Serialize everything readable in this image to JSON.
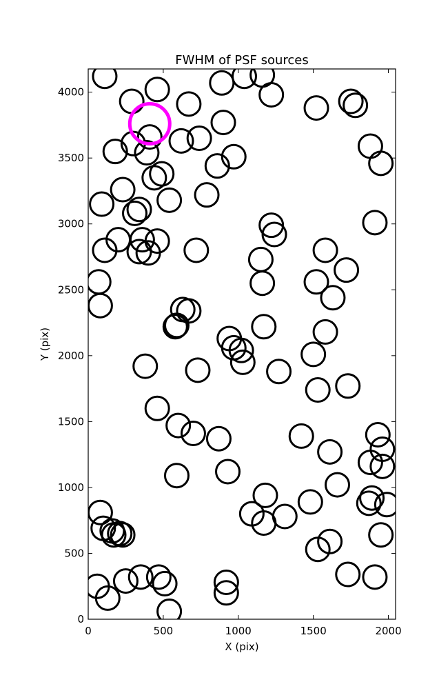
{
  "chart_data": {
    "type": "scatter",
    "title": "FWHM of PSF sources",
    "xlabel": "X (pix)",
    "ylabel": "Y (pix)",
    "xlim": [
      0,
      2048
    ],
    "ylim": [
      0,
      4176
    ],
    "xticks": [
      0,
      500,
      1000,
      1500,
      2000
    ],
    "yticks": [
      0,
      500,
      1000,
      1500,
      2000,
      2500,
      3000,
      3500,
      4000
    ],
    "marker": "open-circle",
    "marker_color": "#000000",
    "highlight_color": "#ff00ff",
    "grid": false,
    "highlight": {
      "x": 410,
      "y": 3760
    },
    "points": [
      [
        110,
        4120
      ],
      [
        290,
        3930
      ],
      [
        460,
        4020
      ],
      [
        670,
        3910
      ],
      [
        890,
        4070
      ],
      [
        1040,
        4120
      ],
      [
        1160,
        4130
      ],
      [
        1220,
        3980
      ],
      [
        1520,
        3880
      ],
      [
        1750,
        3930
      ],
      [
        1780,
        3900
      ],
      [
        1880,
        3590
      ],
      [
        1950,
        3460
      ],
      [
        410,
        3660
      ],
      [
        300,
        3610
      ],
      [
        180,
        3550
      ],
      [
        390,
        3540
      ],
      [
        620,
        3630
      ],
      [
        740,
        3650
      ],
      [
        900,
        3770
      ],
      [
        970,
        3510
      ],
      [
        860,
        3440
      ],
      [
        440,
        3350
      ],
      [
        490,
        3380
      ],
      [
        230,
        3260
      ],
      [
        540,
        3180
      ],
      [
        790,
        3220
      ],
      [
        90,
        3150
      ],
      [
        340,
        3110
      ],
      [
        310,
        3080
      ],
      [
        1220,
        2990
      ],
      [
        1240,
        2920
      ],
      [
        1910,
        3010
      ],
      [
        200,
        2880
      ],
      [
        360,
        2880
      ],
      [
        460,
        2870
      ],
      [
        110,
        2800
      ],
      [
        340,
        2790
      ],
      [
        400,
        2780
      ],
      [
        720,
        2800
      ],
      [
        1150,
        2730
      ],
      [
        1580,
        2800
      ],
      [
        1720,
        2650
      ],
      [
        70,
        2560
      ],
      [
        1160,
        2550
      ],
      [
        1520,
        2560
      ],
      [
        1630,
        2440
      ],
      [
        80,
        2380
      ],
      [
        630,
        2350
      ],
      [
        670,
        2340
      ],
      [
        580,
        2220
      ],
      [
        590,
        2230
      ],
      [
        1170,
        2220
      ],
      [
        1580,
        2180
      ],
      [
        940,
        2130
      ],
      [
        970,
        2060
      ],
      [
        1020,
        2040
      ],
      [
        1030,
        1950
      ],
      [
        1500,
        2010
      ],
      [
        380,
        1920
      ],
      [
        730,
        1890
      ],
      [
        1270,
        1880
      ],
      [
        1530,
        1740
      ],
      [
        1730,
        1770
      ],
      [
        460,
        1600
      ],
      [
        600,
        1470
      ],
      [
        700,
        1410
      ],
      [
        870,
        1370
      ],
      [
        1420,
        1390
      ],
      [
        1930,
        1400
      ],
      [
        1960,
        1290
      ],
      [
        1610,
        1270
      ],
      [
        1880,
        1190
      ],
      [
        1960,
        1160
      ],
      [
        590,
        1090
      ],
      [
        930,
        1120
      ],
      [
        1660,
        1020
      ],
      [
        1180,
        940
      ],
      [
        1480,
        890
      ],
      [
        1890,
        920
      ],
      [
        1870,
        880
      ],
      [
        1990,
        870
      ],
      [
        80,
        810
      ],
      [
        1090,
        800
      ],
      [
        1310,
        780
      ],
      [
        1170,
        730
      ],
      [
        100,
        690
      ],
      [
        160,
        670
      ],
      [
        170,
        640
      ],
      [
        210,
        650
      ],
      [
        230,
        640
      ],
      [
        1950,
        640
      ],
      [
        1610,
        590
      ],
      [
        1530,
        530
      ],
      [
        1730,
        340
      ],
      [
        1910,
        320
      ],
      [
        60,
        250
      ],
      [
        130,
        160
      ],
      [
        250,
        290
      ],
      [
        350,
        320
      ],
      [
        470,
        320
      ],
      [
        510,
        270
      ],
      [
        920,
        280
      ],
      [
        920,
        200
      ],
      [
        540,
        60
      ]
    ]
  }
}
